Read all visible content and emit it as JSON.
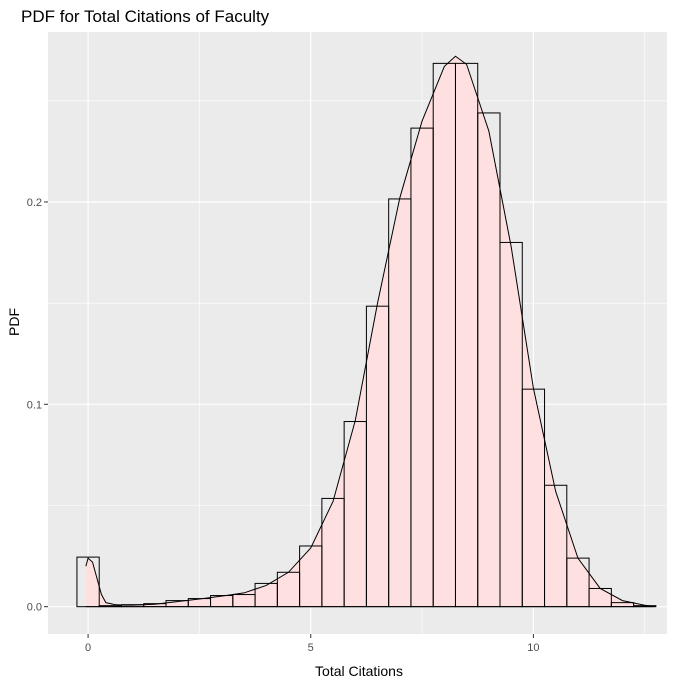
{
  "chart_data": {
    "type": "bar",
    "title": "PDF for Total Citations of Faculty",
    "xlabel": "Total Citations",
    "ylabel": "PDF",
    "xlim": [
      -0.9,
      13.0
    ],
    "ylim": [
      -0.0135,
      0.284
    ],
    "xticks": [
      0,
      5,
      10
    ],
    "yticks": [
      0.0,
      0.1,
      0.2
    ],
    "xtick_labels": [
      "0",
      "5",
      "10"
    ],
    "ytick_labels": [
      "0.0",
      "0.1",
      "0.2"
    ],
    "grid": true,
    "bin_width": 0.5,
    "histogram": {
      "x": [
        0.0,
        0.5,
        1.0,
        1.5,
        2.0,
        2.5,
        3.0,
        3.5,
        4.0,
        4.5,
        5.0,
        5.5,
        6.0,
        6.5,
        7.0,
        7.5,
        8.0,
        8.5,
        9.0,
        9.5,
        10.0,
        10.5,
        11.0,
        11.5,
        12.0,
        12.5
      ],
      "values": [
        0.0245,
        0.0005,
        0.001,
        0.0015,
        0.003,
        0.004,
        0.0055,
        0.006,
        0.0115,
        0.017,
        0.03,
        0.0535,
        0.0915,
        0.1485,
        0.2015,
        0.2365,
        0.2685,
        0.2685,
        0.244,
        0.18,
        0.1075,
        0.06,
        0.024,
        0.009,
        0.002,
        0.0005
      ]
    },
    "density": {
      "x": [
        -0.05,
        0.0,
        0.1,
        0.2,
        0.3,
        0.4,
        0.6,
        0.8,
        1.0,
        1.5,
        2.0,
        2.5,
        3.0,
        3.5,
        4.0,
        4.5,
        5.0,
        5.5,
        6.0,
        6.5,
        7.0,
        7.5,
        8.0,
        8.25,
        8.5,
        9.0,
        9.5,
        10.0,
        10.5,
        11.0,
        11.5,
        12.0,
        12.5,
        12.7
      ],
      "values": [
        0.02,
        0.024,
        0.022,
        0.014,
        0.006,
        0.002,
        0.001,
        0.0008,
        0.0008,
        0.0012,
        0.0025,
        0.0038,
        0.0052,
        0.0068,
        0.0105,
        0.017,
        0.029,
        0.052,
        0.092,
        0.15,
        0.202,
        0.24,
        0.267,
        0.272,
        0.268,
        0.235,
        0.178,
        0.108,
        0.057,
        0.024,
        0.009,
        0.003,
        0.0007,
        0.0002
      ]
    },
    "colors": {
      "panel": "#ebebeb",
      "grid_major": "#ffffff",
      "fill": "#ffe0e0",
      "outline": "#000000",
      "axis_text": "#4d4d4d"
    }
  }
}
